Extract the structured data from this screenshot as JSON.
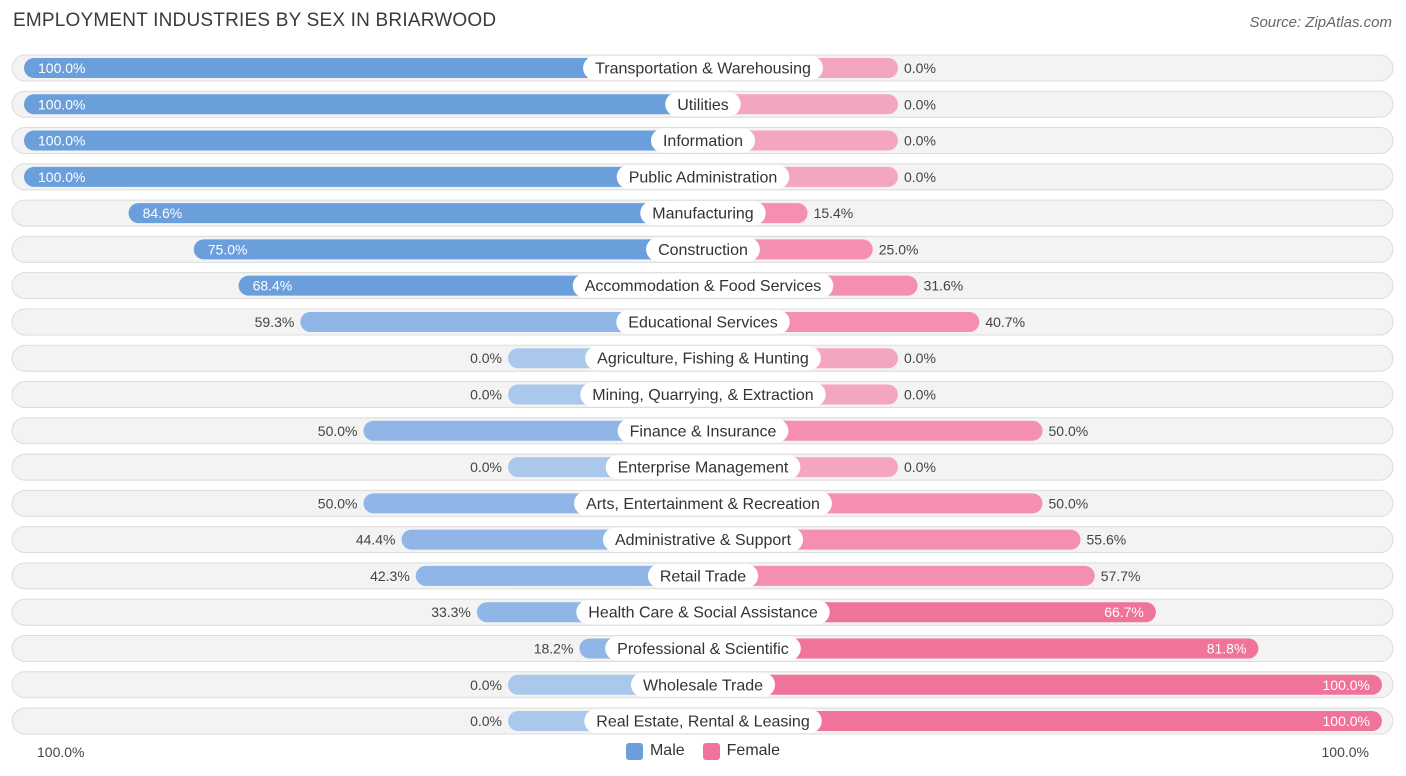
{
  "header": {
    "title": "Employment Industries by Sex in Briarwood",
    "source": "Source: ZipAtlas.com"
  },
  "axis": {
    "left_label": "100.0%",
    "right_label": "100.0%"
  },
  "legend": {
    "male_label": "Male",
    "female_label": "Female"
  },
  "colors": {
    "male_strong": "#6a9fdc",
    "male_light": "#a9c8ec",
    "female_strong": "#f07399",
    "female_light": "#f5a6bf",
    "row_background": "#f3f3f3"
  },
  "chart_data": {
    "type": "bar",
    "orientation": "horizontal-diverging",
    "title": "Employment Industries by Sex in Briarwood",
    "xlim": [
      -100,
      100
    ],
    "categories": [
      "Transportation & Warehousing",
      "Utilities",
      "Information",
      "Public Administration",
      "Manufacturing",
      "Construction",
      "Accommodation & Food Services",
      "Educational Services",
      "Agriculture, Fishing & Hunting",
      "Mining, Quarrying, & Extraction",
      "Finance & Insurance",
      "Enterprise Management",
      "Arts, Entertainment & Recreation",
      "Administrative & Support",
      "Retail Trade",
      "Health Care & Social Assistance",
      "Professional & Scientific",
      "Wholesale Trade",
      "Real Estate, Rental & Leasing"
    ],
    "series": [
      {
        "name": "Male",
        "values": [
          100.0,
          100.0,
          100.0,
          100.0,
          84.6,
          75.0,
          68.4,
          59.3,
          0.0,
          0.0,
          50.0,
          0.0,
          50.0,
          44.4,
          42.3,
          33.3,
          18.2,
          0.0,
          0.0
        ],
        "labels": [
          "100.0%",
          "100.0%",
          "100.0%",
          "100.0%",
          "84.6%",
          "75.0%",
          "68.4%",
          "59.3%",
          "0.0%",
          "0.0%",
          "50.0%",
          "0.0%",
          "50.0%",
          "44.4%",
          "42.3%",
          "33.3%",
          "18.2%",
          "0.0%",
          "0.0%"
        ]
      },
      {
        "name": "Female",
        "values": [
          0.0,
          0.0,
          0.0,
          0.0,
          15.4,
          25.0,
          31.6,
          40.7,
          0.0,
          0.0,
          50.0,
          0.0,
          50.0,
          55.6,
          57.7,
          66.7,
          81.8,
          100.0,
          100.0
        ],
        "labels": [
          "0.0%",
          "0.0%",
          "0.0%",
          "0.0%",
          "15.4%",
          "25.0%",
          "31.6%",
          "40.7%",
          "0.0%",
          "0.0%",
          "50.0%",
          "0.0%",
          "50.0%",
          "55.6%",
          "57.7%",
          "66.7%",
          "81.8%",
          "100.0%",
          "100.0%"
        ]
      }
    ],
    "legend_position": "bottom-center"
  }
}
